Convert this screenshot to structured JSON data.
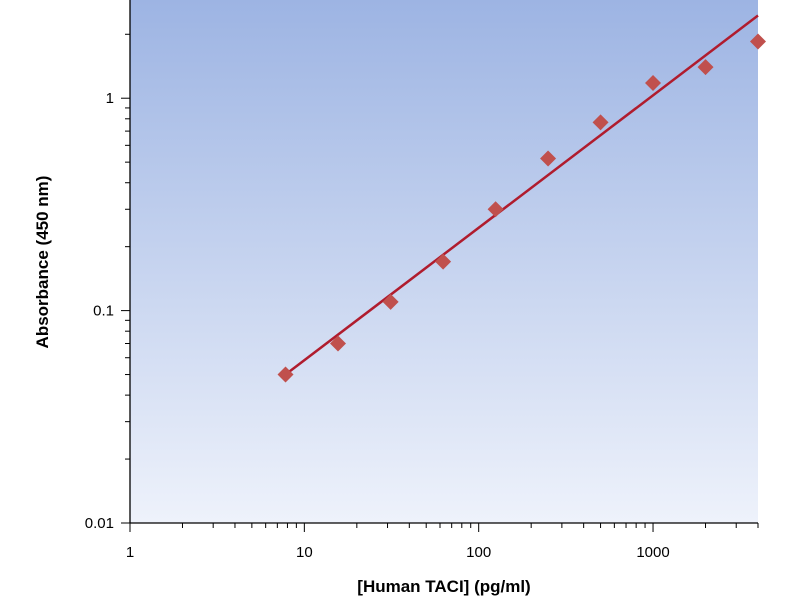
{
  "chart_data": {
    "type": "scatter",
    "xlabel": "[Human TACI] (pg/ml)",
    "ylabel": "Absorbance (450 nm)",
    "x_scale": "log",
    "y_scale": "log",
    "xlim": [
      1,
      4000
    ],
    "ylim": [
      0.01,
      2.9
    ],
    "x_tick_values": [
      1,
      10,
      100,
      1000
    ],
    "x_tick_labels": [
      "1",
      "10",
      "100",
      "1000"
    ],
    "y_tick_values": [
      0.01,
      0.1,
      1
    ],
    "y_tick_labels": [
      "0.01",
      "0.1",
      "1"
    ],
    "grid": false,
    "colors": {
      "points": "#c0504d",
      "fit_line": "#b01c2e",
      "plot_bg_top": "#9db4e3",
      "plot_bg_bottom": "#eef2fb",
      "axis": "#000000"
    },
    "series": [
      {
        "marker": "diamond",
        "x": [
          7.8,
          15.6,
          31.25,
          62.5,
          125,
          250,
          500,
          1000,
          2000,
          4000
        ],
        "y": [
          0.05,
          0.07,
          0.11,
          0.17,
          0.3,
          0.52,
          0.77,
          1.18,
          1.4,
          1.85
        ]
      }
    ],
    "fit_line": {
      "x": [
        7.8,
        4000
      ],
      "y": [
        0.05,
        2.45
      ]
    }
  }
}
